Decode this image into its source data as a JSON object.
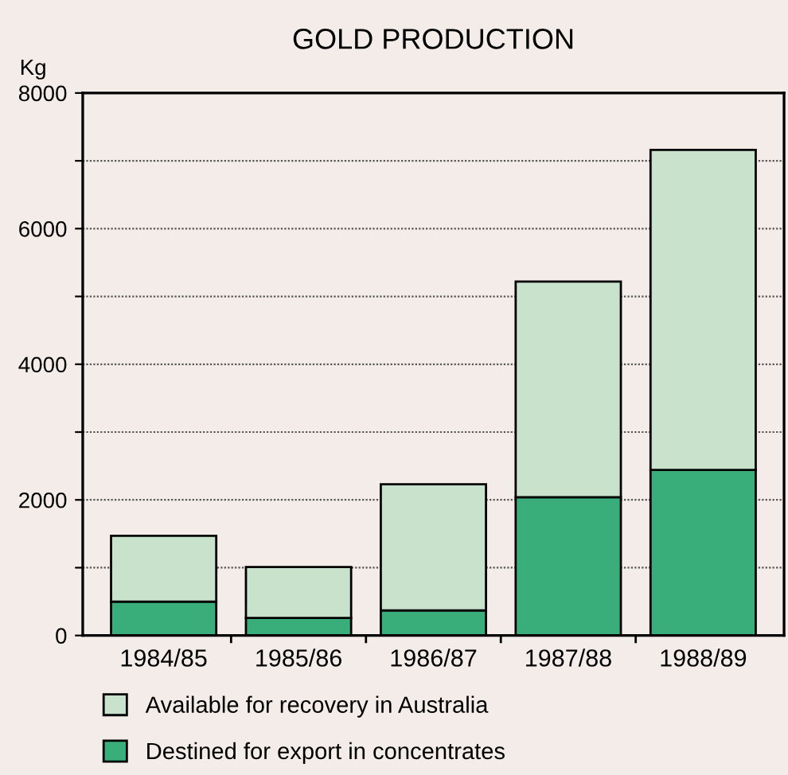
{
  "chart_data": {
    "type": "bar",
    "title": "GOLD PRODUCTION",
    "ylabel": "Kg",
    "categories": [
      "1984/85",
      "1985/86",
      "1986/87",
      "1987/88",
      "1988/89"
    ],
    "stacked": true,
    "series": [
      {
        "name": "Destined for export in concentrates",
        "color": "#3aae7a",
        "values": [
          500,
          260,
          370,
          2040,
          2440
        ]
      },
      {
        "name": "Available for recovery in Australia",
        "color": "#c9e2cb",
        "values": [
          970,
          750,
          1860,
          3180,
          4720
        ]
      }
    ],
    "ylim": [
      0,
      8000
    ],
    "yticks": [
      0,
      {
        "value": 1000,
        "label": null
      },
      2000,
      {
        "value": 3000,
        "label": null
      },
      4000,
      {
        "value": 5000,
        "label": null
      },
      6000,
      {
        "value": 7000,
        "label": null
      },
      8000
    ],
    "grid": "y",
    "legend": "bottom"
  }
}
